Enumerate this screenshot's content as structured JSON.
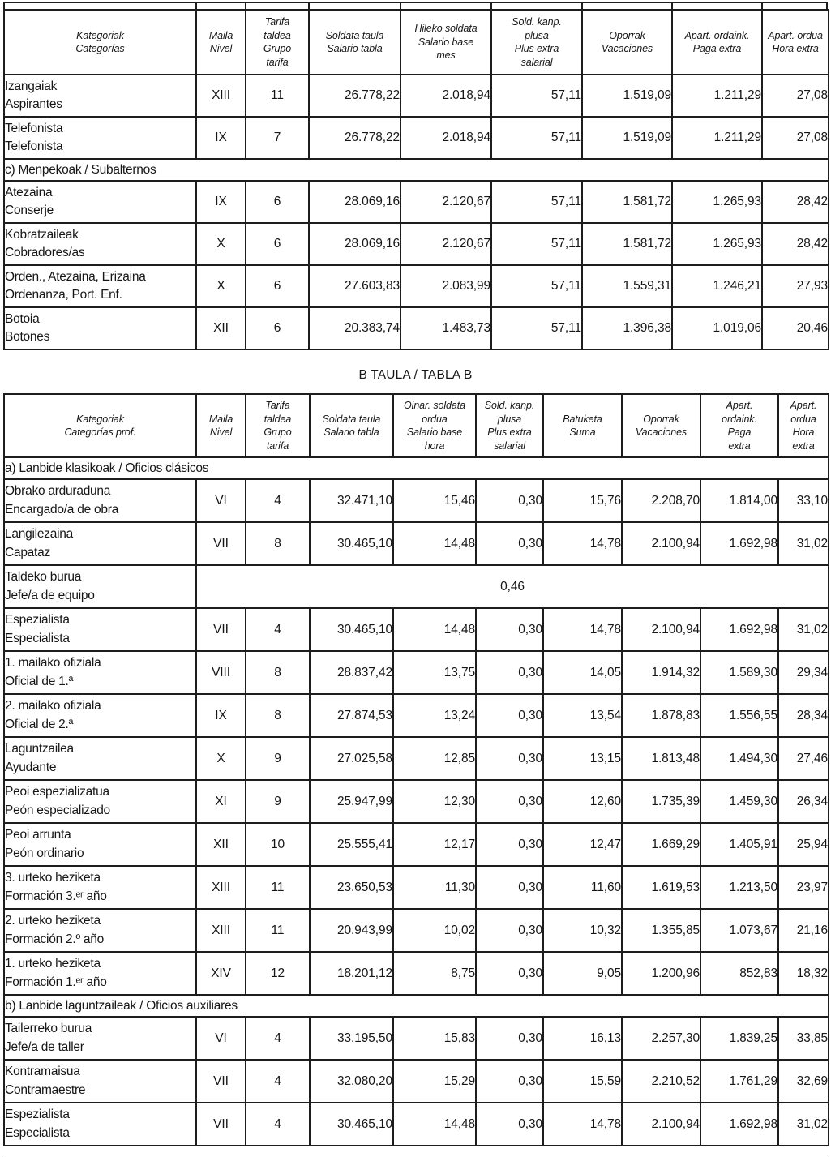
{
  "title_b": "B TAULA / TABLA B",
  "table_a": {
    "headers": [
      "Kategoriak\nCategorías",
      "Maila\nNivel",
      "Tarifa\ntaldea\nGrupo\ntarifa",
      "Soldata taula\nSalario tabla",
      "Hileko soldata\nSalario base\nmes",
      "Sold. kanp.\nplusa\nPlus extra\nsalarial",
      "Oporrak\nVacaciones",
      "Apart. ordaink.\nPaga extra",
      "Apart. ordua\nHora extra"
    ],
    "rows": [
      {
        "type": "data",
        "label": "Izangaiak\nAspirantes",
        "values": [
          "XIII",
          "11",
          "26.778,22",
          "2.018,94",
          "57,11",
          "1.519,09",
          "1.211,29",
          "27,08"
        ]
      },
      {
        "type": "data",
        "label": "Telefonista\nTelefonista",
        "values": [
          "IX",
          "7",
          "26.778,22",
          "2.018,94",
          "57,11",
          "1.519,09",
          "1.211,29",
          "27,08"
        ]
      },
      {
        "type": "section",
        "label": "c) Menpekoak / Subalternos"
      },
      {
        "type": "data",
        "label": "Atezaina\nConserje",
        "values": [
          "IX",
          "6",
          "28.069,16",
          "2.120,67",
          "57,11",
          "1.581,72",
          "1.265,93",
          "28,42"
        ]
      },
      {
        "type": "data",
        "label": "Kobratzaileak\nCobradores/as",
        "values": [
          "X",
          "6",
          "28.069,16",
          "2.120,67",
          "57,11",
          "1.581,72",
          "1.265,93",
          "28,42"
        ]
      },
      {
        "type": "data",
        "label": "Orden., Atezaina, Erizaina\nOrdenanza, Port. Enf.",
        "values": [
          "X",
          "6",
          "27.603,83",
          "2.083,99",
          "57,11",
          "1.559,31",
          "1.246,21",
          "27,93"
        ]
      },
      {
        "type": "data",
        "label": "Botoia\nBotones",
        "values": [
          "XII",
          "6",
          "20.383,74",
          "1.483,73",
          "57,11",
          "1.396,38",
          "1.019,06",
          "20,46"
        ]
      }
    ]
  },
  "table_b": {
    "headers": [
      "Kategoriak\nCategorías prof.",
      "Maila\nNivel",
      "Tarifa\ntaldea\nGrupo\ntarifa",
      "Soldata taula\nSalario tabla",
      "Oinar. soldata\nordua\nSalario base\nhora",
      "Sold. kanp.\nplusa\nPlus extra\nsalarial",
      "Batuketa\nSuma",
      "Oporrak\nVacaciones",
      "Apart.\nordaink.\nPaga\nextra",
      "Apart.\nordua\nHora\nextra"
    ],
    "rows": [
      {
        "type": "section",
        "label": "a) Lanbide klasikoak / Oficios clásicos"
      },
      {
        "type": "data",
        "label": "Obrako arduraduna\nEncargado/a de obra",
        "values": [
          "VI",
          "4",
          "32.471,10",
          "15,46",
          "0,30",
          "15,76",
          "2.208,70",
          "1.814,00",
          "33,10"
        ]
      },
      {
        "type": "data",
        "label": "Langilezaina\nCapataz",
        "values": [
          "VII",
          "8",
          "30.465,10",
          "14,48",
          "0,30",
          "14,78",
          "2.100,94",
          "1.692,98",
          "31,02"
        ]
      },
      {
        "type": "merged",
        "label": "Taldeko burua\nJefe/a de equipo",
        "value": "0,46"
      },
      {
        "type": "data",
        "label": "Espezialista\nEspecialista",
        "values": [
          "VII",
          "4",
          "30.465,10",
          "14,48",
          "0,30",
          "14,78",
          "2.100,94",
          "1.692,98",
          "31,02"
        ]
      },
      {
        "type": "data",
        "label": "1. mailako ofiziala\nOficial de 1.ª",
        "values": [
          "VIII",
          "8",
          "28.837,42",
          "13,75",
          "0,30",
          "14,05",
          "1.914,32",
          "1.589,30",
          "29,34"
        ]
      },
      {
        "type": "data",
        "label": "2. mailako ofiziala\nOficial de 2.ª",
        "values": [
          "IX",
          "8",
          "27.874,53",
          "13,24",
          "0,30",
          "13,54",
          "1.878,83",
          "1.556,55",
          "28,34"
        ]
      },
      {
        "type": "data",
        "label": "Laguntzailea\nAyudante",
        "values": [
          "X",
          "9",
          "27.025,58",
          "12,85",
          "0,30",
          "13,15",
          "1.813,48",
          "1.494,30",
          "27,46"
        ]
      },
      {
        "type": "data",
        "label": "Peoi espezializatua\nPeón especializado",
        "values": [
          "XI",
          "9",
          "25.947,99",
          "12,30",
          "0,30",
          "12,60",
          "1.735,39",
          "1.459,30",
          "26,34"
        ]
      },
      {
        "type": "data",
        "label": "Peoi arrunta\nPeón ordinario",
        "values": [
          "XII",
          "10",
          "25.555,41",
          "12,17",
          "0,30",
          "12,47",
          "1.669,29",
          "1.405,91",
          "25,94"
        ]
      },
      {
        "type": "data",
        "label": "3. urteko heziketa\nFormación 3.ᵉʳ año",
        "values": [
          "XIII",
          "11",
          "23.650,53",
          "11,30",
          "0,30",
          "11,60",
          "1.619,53",
          "1.213,50",
          "23,97"
        ]
      },
      {
        "type": "data",
        "label": "2. urteko heziketa\nFormación 2.º año",
        "values": [
          "XIII",
          "11",
          "20.943,99",
          "10,02",
          "0,30",
          "10,32",
          "1.355,85",
          "1.073,67",
          "21,16"
        ]
      },
      {
        "type": "data",
        "label": "1. urteko heziketa\nFormación 1.ᵉʳ año",
        "values": [
          "XIV",
          "12",
          "18.201,12",
          "8,75",
          "0,30",
          "9,05",
          "1.200,96",
          "852,83",
          "18,32"
        ]
      },
      {
        "type": "section",
        "label": "b) Lanbide laguntzaileak / Oficios auxiliares"
      },
      {
        "type": "data",
        "label": "Tailerreko burua\nJefe/a de taller",
        "values": [
          "VI",
          "4",
          "33.195,50",
          "15,83",
          "0,30",
          "16,13",
          "2.257,30",
          "1.839,25",
          "33,85"
        ]
      },
      {
        "type": "data",
        "label": "Kontramaisua\nContramaestre",
        "values": [
          "VII",
          "4",
          "32.080,20",
          "15,29",
          "0,30",
          "15,59",
          "2.210,52",
          "1.761,29",
          "32,69"
        ]
      },
      {
        "type": "data",
        "label": "Espezialista\nEspecialista",
        "values": [
          "VII",
          "4",
          "30.465,10",
          "14,48",
          "0,30",
          "14,78",
          "2.100,94",
          "1.692,98",
          "31,02"
        ]
      }
    ]
  }
}
